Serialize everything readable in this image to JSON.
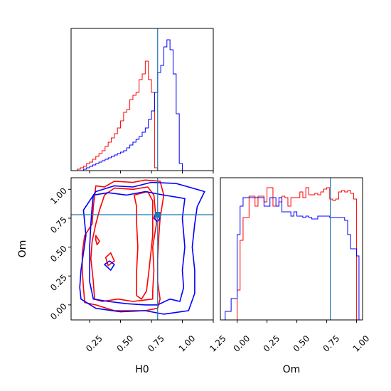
{
  "chart_data": {
    "type": "corner",
    "title": "",
    "parameters": [
      "H0",
      "Om"
    ],
    "truths": {
      "H0": 0.8,
      "Om": 0.78
    },
    "truth_color": "#1f77b4",
    "series": [
      {
        "color": "#ff0000"
      },
      {
        "color": "#0000ff"
      }
    ],
    "panels": [
      {
        "id": "hist_H0",
        "type": "histogram",
        "parameter": "H0",
        "xlim": [
          0.1,
          1.25
        ],
        "ylim": [
          0,
          1
        ],
        "xticks": [
          0.25,
          0.5,
          0.75,
          1.0,
          1.25
        ],
        "show_tick_labels": false,
        "bin_edges": [
          0.15,
          0.175,
          0.2,
          0.225,
          0.25,
          0.275,
          0.3,
          0.325,
          0.35,
          0.375,
          0.4,
          0.425,
          0.45,
          0.475,
          0.5,
          0.525,
          0.55,
          0.575,
          0.6,
          0.625,
          0.65,
          0.675,
          0.7,
          0.725,
          0.75,
          0.775,
          0.8,
          0.825,
          0.85,
          0.875,
          0.9,
          0.925,
          0.95,
          0.975,
          1.0,
          1.025,
          1.05,
          1.075,
          1.1,
          1.125,
          1.15,
          1.175,
          1.2
        ],
        "series_values": [
          [
            0.01,
            0.02,
            0.03,
            0.05,
            0.06,
            0.08,
            0.1,
            0.12,
            0.14,
            0.17,
            0.2,
            0.23,
            0.26,
            0.3,
            0.35,
            0.41,
            0.43,
            0.5,
            0.53,
            0.55,
            0.64,
            0.68,
            0.77,
            0.64,
            0.55,
            0.02,
            0.0,
            0.0,
            0.0,
            0.0,
            0.0,
            0.0,
            0.0,
            0.0,
            0.0,
            0.0,
            0.0,
            0.0,
            0.0,
            0.0,
            0.0,
            0.0
          ],
          [
            0.0,
            0.0,
            0.01,
            0.02,
            0.03,
            0.04,
            0.05,
            0.06,
            0.07,
            0.08,
            0.09,
            0.1,
            0.11,
            0.12,
            0.13,
            0.14,
            0.16,
            0.18,
            0.2,
            0.22,
            0.24,
            0.27,
            0.3,
            0.36,
            0.42,
            0.55,
            0.69,
            0.74,
            0.87,
            0.92,
            0.85,
            0.68,
            0.4,
            0.05,
            0.0,
            0.0,
            0.0,
            0.0,
            0.0,
            0.0,
            0.0,
            0.0
          ]
        ]
      },
      {
        "id": "contour_H0_Om",
        "type": "contour",
        "x_parameter": "H0",
        "y_parameter": "Om",
        "xlim": [
          0.1,
          1.25
        ],
        "ylim": [
          -0.13,
          1.1
        ],
        "xticks": [
          0.25,
          0.5,
          0.75,
          1.0,
          1.25
        ],
        "xtick_labels": [
          "0.25",
          "0.50",
          "0.75",
          "1.00",
          "1.25"
        ],
        "yticks": [
          0.0,
          0.25,
          0.5,
          0.75,
          1.0
        ],
        "ytick_labels": [
          "0.00",
          "0.25",
          "0.50",
          "0.75",
          "1.00"
        ],
        "xlabel": "H0",
        "ylabel": "Om",
        "series_contours": [
          [
            [
              [
                0.21,
                0.02
              ],
              [
                0.3,
                0.0
              ],
              [
                0.45,
                -0.05
              ],
              [
                0.7,
                -0.05
              ],
              [
                0.8,
                -0.03
              ],
              [
                0.82,
                0.05
              ],
              [
                0.8,
                0.2
              ],
              [
                0.8,
                0.4
              ],
              [
                0.81,
                0.6
              ],
              [
                0.82,
                0.75
              ],
              [
                0.85,
                0.95
              ],
              [
                0.82,
                1.07
              ],
              [
                0.7,
                1.08
              ],
              [
                0.6,
                1.06
              ],
              [
                0.45,
                1.07
              ],
              [
                0.37,
                1.02
              ],
              [
                0.3,
                1.03
              ],
              [
                0.28,
                0.85
              ],
              [
                0.27,
                0.7
              ],
              [
                0.21,
                0.6
              ],
              [
                0.19,
                0.45
              ],
              [
                0.19,
                0.3
              ],
              [
                0.2,
                0.15
              ]
            ],
            [
              [
                0.37,
                0.95
              ],
              [
                0.45,
                1.01
              ],
              [
                0.6,
                1.0
              ],
              [
                0.72,
                1.02
              ],
              [
                0.77,
                0.95
              ],
              [
                0.79,
                0.7
              ],
              [
                0.76,
                0.5
              ],
              [
                0.77,
                0.3
              ],
              [
                0.76,
                0.12
              ],
              [
                0.76,
                0.05
              ],
              [
                0.6,
                0.03
              ],
              [
                0.48,
                0.05
              ],
              [
                0.35,
                0.03
              ],
              [
                0.29,
                0.05
              ],
              [
                0.28,
                0.2
              ],
              [
                0.26,
                0.4
              ],
              [
                0.27,
                0.55
              ],
              [
                0.3,
                0.7
              ],
              [
                0.33,
                0.82
              ]
            ],
            [
              [
                0.61,
                0.95
              ],
              [
                0.72,
                0.98
              ],
              [
                0.76,
                0.9
              ],
              [
                0.76,
                0.6
              ],
              [
                0.73,
                0.3
              ],
              [
                0.71,
                0.12
              ],
              [
                0.67,
                0.05
              ],
              [
                0.63,
                0.08
              ],
              [
                0.63,
                0.3
              ],
              [
                0.64,
                0.5
              ],
              [
                0.63,
                0.7
              ],
              [
                0.63,
                0.85
              ]
            ],
            [
              [
                0.3,
                0.6
              ],
              [
                0.33,
                0.55
              ],
              [
                0.31,
                0.52
              ],
              [
                0.3,
                0.56
              ]
            ],
            [
              [
                0.42,
                0.45
              ],
              [
                0.45,
                0.38
              ],
              [
                0.4,
                0.34
              ],
              [
                0.38,
                0.41
              ]
            ]
          ],
          [
            [
              [
                0.18,
                0.05
              ],
              [
                0.3,
                -0.03
              ],
              [
                0.5,
                -0.06
              ],
              [
                0.7,
                -0.05
              ],
              [
                0.85,
                -0.08
              ],
              [
                1.05,
                -0.05
              ],
              [
                1.1,
                0.1
              ],
              [
                1.1,
                0.3
              ],
              [
                1.08,
                0.5
              ],
              [
                1.1,
                0.7
              ],
              [
                1.12,
                0.85
              ],
              [
                1.18,
                0.98
              ],
              [
                1.05,
                1.02
              ],
              [
                0.95,
                1.05
              ],
              [
                0.75,
                1.06
              ],
              [
                0.6,
                1.02
              ],
              [
                0.45,
                1.03
              ],
              [
                0.3,
                0.98
              ],
              [
                0.2,
                0.82
              ],
              [
                0.22,
                0.6
              ],
              [
                0.2,
                0.45
              ],
              [
                0.18,
                0.3
              ],
              [
                0.17,
                0.15
              ]
            ],
            [
              [
                0.28,
                0.95
              ],
              [
                0.4,
                0.97
              ],
              [
                0.55,
                0.95
              ],
              [
                0.7,
                0.98
              ],
              [
                0.85,
                0.95
              ],
              [
                1.02,
                0.92
              ],
              [
                1.0,
                0.75
              ],
              [
                1.02,
                0.5
              ],
              [
                1.0,
                0.3
              ],
              [
                1.01,
                0.15
              ],
              [
                0.98,
                0.03
              ],
              [
                0.9,
                0.05
              ],
              [
                0.8,
                0.0
              ],
              [
                0.7,
                0.0
              ],
              [
                0.55,
                0.01
              ],
              [
                0.4,
                0.03
              ],
              [
                0.28,
                0.05
              ],
              [
                0.25,
                0.2
              ],
              [
                0.25,
                0.35
              ],
              [
                0.25,
                0.5
              ],
              [
                0.26,
                0.7
              ],
              [
                0.27,
                0.85
              ]
            ],
            [
              [
                0.37,
                0.35
              ],
              [
                0.42,
                0.3
              ],
              [
                0.45,
                0.35
              ],
              [
                0.41,
                0.38
              ]
            ],
            [
              [
                0.78,
                0.78
              ],
              [
                0.82,
                0.75
              ],
              [
                0.8,
                0.72
              ],
              [
                0.77,
                0.75
              ]
            ]
          ]
        ]
      },
      {
        "id": "hist_Om",
        "type": "histogram",
        "parameter": "Om",
        "xlim": [
          -0.14,
          1.05
        ],
        "ylim": [
          0,
          1
        ],
        "xticks": [
          0.0,
          0.25,
          0.5,
          0.75,
          1.0
        ],
        "xtick_labels": [
          "0.00",
          "0.25",
          "0.50",
          "0.75",
          "1.00"
        ],
        "xlabel": "Om",
        "bin_edges": [
          -0.1,
          -0.05,
          0.0,
          0.025,
          0.05,
          0.075,
          0.1,
          0.125,
          0.15,
          0.175,
          0.2,
          0.225,
          0.25,
          0.275,
          0.3,
          0.325,
          0.35,
          0.375,
          0.4,
          0.425,
          0.45,
          0.475,
          0.5,
          0.525,
          0.55,
          0.575,
          0.6,
          0.625,
          0.65,
          0.675,
          0.7,
          0.725,
          0.75,
          0.775,
          0.8,
          0.825,
          0.85,
          0.875,
          0.9,
          0.925,
          0.95,
          0.975,
          1.0,
          1.02
        ],
        "series_values": [
          [
            0.0,
            0.0,
            0.21,
            0.56,
            0.72,
            0.72,
            0.87,
            0.87,
            0.8,
            0.87,
            0.87,
            0.83,
            0.93,
            0.93,
            0.8,
            0.8,
            0.83,
            0.87,
            0.86,
            0.8,
            0.86,
            0.86,
            0.86,
            0.9,
            0.86,
            0.93,
            0.88,
            0.88,
            0.89,
            0.88,
            0.9,
            0.92,
            0.93,
            0.85,
            0.84,
            0.85,
            0.9,
            0.91,
            0.9,
            0.91,
            0.89,
            0.85,
            0.0
          ],
          [
            0.06,
            0.15,
            0.6,
            0.8,
            0.86,
            0.86,
            0.86,
            0.86,
            0.86,
            0.86,
            0.86,
            0.8,
            0.8,
            0.86,
            0.86,
            0.8,
            0.86,
            0.76,
            0.76,
            0.76,
            0.73,
            0.76,
            0.73,
            0.73,
            0.72,
            0.73,
            0.72,
            0.71,
            0.71,
            0.73,
            0.73,
            0.73,
            0.73,
            0.72,
            0.72,
            0.72,
            0.72,
            0.72,
            0.7,
            0.6,
            0.5,
            0.5,
            0.45
          ]
        ]
      }
    ]
  }
}
